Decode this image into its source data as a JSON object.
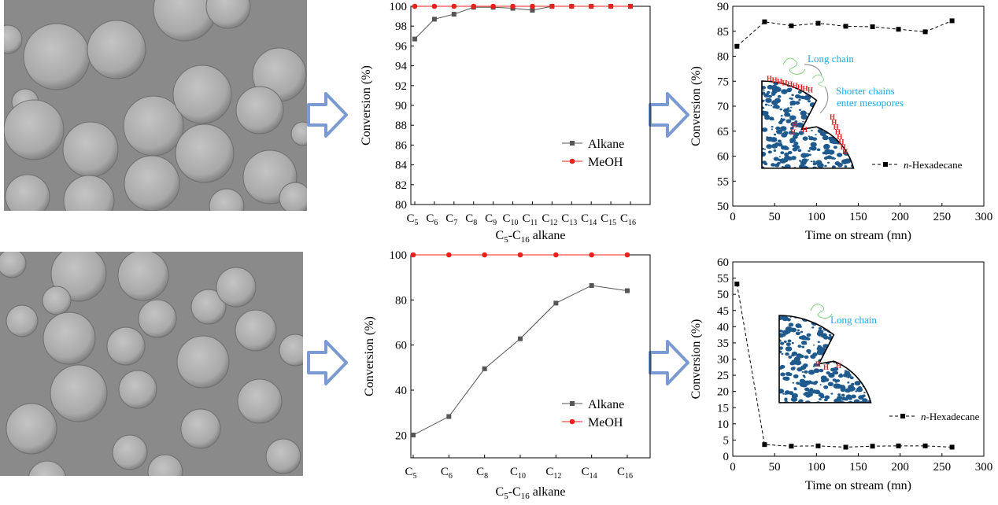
{
  "colors": {
    "alkane": "#555555",
    "meoh": "#e8221b",
    "arrow_fill": "#ffffff",
    "arrow_stroke": "#7b9ad2",
    "annotation_blue": "#1aa9e8",
    "pore_blue": "#1f5a8e",
    "h_red": "#e81b1b",
    "sem_bg": "#8a8a8a",
    "sem_sphere": "#b6b6b6"
  },
  "panels": {
    "top_sem": {
      "name": "SEM image top",
      "kind": "micrograph"
    },
    "bottom_sem": {
      "name": "SEM image bottom",
      "kind": "micrograph"
    }
  },
  "annotations": {
    "top": {
      "long_chain": "Long chain",
      "shorter_line1": "Shorter chains",
      "shorter_line2": "enter mesopores",
      "h_glyph": "H"
    },
    "bottom": {
      "long_chain": "Long chain",
      "h_glyph": "H"
    }
  },
  "chart_data": [
    {
      "id": "top_conversion",
      "type": "line",
      "ylabel": "Conversion (%)",
      "xlabel_parts": [
        "C",
        "5",
        "-C",
        "16",
        " alkane"
      ],
      "ylim": [
        80,
        100
      ],
      "yticks": [
        80,
        82,
        84,
        86,
        88,
        90,
        92,
        94,
        96,
        98,
        100
      ],
      "ytick_labels": [
        "80",
        "82",
        "84",
        "86",
        "88",
        "90",
        "92",
        "94",
        "96",
        "98",
        "100"
      ],
      "categories": [
        "5",
        "6",
        "7",
        "8",
        "9",
        "10",
        "11",
        "12",
        "13",
        "14",
        "15",
        "16"
      ],
      "category_prefix": "C",
      "series": [
        {
          "name": "Alkane",
          "marker": "square",
          "values": [
            96.7,
            98.7,
            99.2,
            99.9,
            99.9,
            99.8,
            99.6,
            100,
            100,
            100,
            100,
            100
          ]
        },
        {
          "name": "MeOH",
          "marker": "circle",
          "values": [
            100,
            100,
            100,
            100,
            100,
            100,
            100,
            100,
            100,
            100,
            100,
            100
          ]
        }
      ],
      "legend": [
        "Alkane",
        "MeOH"
      ],
      "legend_position": "bottom-right"
    },
    {
      "id": "top_stream",
      "type": "line",
      "ylabel": "Conversion (%)",
      "xlabel": "Time on stream (mn)",
      "xlim": [
        0,
        300
      ],
      "xticks": [
        "0",
        "50",
        "100",
        "150",
        "200",
        "250",
        "300"
      ],
      "ylim": [
        50,
        90
      ],
      "yticks": [
        "50",
        "55",
        "60",
        "65",
        "70",
        "75",
        "80",
        "85",
        "90"
      ],
      "series": [
        {
          "name": "n-Hexadecane",
          "marker": "square",
          "x": [
            5,
            38,
            70,
            102,
            135,
            167,
            198,
            230,
            262
          ],
          "values": [
            82,
            86.9,
            86.1,
            86.6,
            86.0,
            85.9,
            85.4,
            84.9,
            87.1
          ]
        }
      ],
      "legend_italic": "n",
      "legend_rest": "-Hexadecane",
      "legend_position": "middle-right"
    },
    {
      "id": "bottom_conversion",
      "type": "line",
      "ylabel": "Conversion (%)",
      "xlabel_parts": [
        "C",
        "5",
        "-C",
        "16",
        " alkane"
      ],
      "ylim": [
        10,
        100
      ],
      "yticks": [
        20,
        40,
        60,
        80,
        100
      ],
      "ytick_labels": [
        "20",
        "40",
        "60",
        "80",
        "100"
      ],
      "categories": [
        "5",
        "6",
        "8",
        "10",
        "12",
        "14",
        "16"
      ],
      "category_prefix": "C",
      "series": [
        {
          "name": "Alkane",
          "marker": "square",
          "values": [
            20.1,
            28.3,
            49.5,
            62.8,
            78.6,
            86.4,
            84.1
          ]
        },
        {
          "name": "MeOH",
          "marker": "circle",
          "values": [
            100,
            100,
            100,
            100,
            100,
            100,
            100
          ]
        }
      ],
      "legend": [
        "Alkane",
        "MeOH"
      ],
      "legend_position": "bottom-right"
    },
    {
      "id": "bottom_stream",
      "type": "line",
      "ylabel": "Conversion (%)",
      "xlabel": "Time on stream (mn)",
      "xlim": [
        0,
        300
      ],
      "xticks": [
        "0",
        "50",
        "100",
        "150",
        "200",
        "250",
        "300"
      ],
      "ylim": [
        0,
        60
      ],
      "yticks": [
        "0",
        "5",
        "10",
        "15",
        "20",
        "25",
        "30",
        "35",
        "40",
        "45",
        "50",
        "55",
        "60"
      ],
      "series": [
        {
          "name": "n-Hexadecane",
          "marker": "square",
          "x": [
            5,
            38,
            70,
            102,
            135,
            167,
            198,
            230,
            262
          ],
          "values": [
            53.2,
            3.6,
            3.1,
            3.2,
            2.8,
            3.1,
            3.2,
            3.2,
            2.8
          ]
        }
      ],
      "legend_italic": "n",
      "legend_rest": "-Hexadecane",
      "legend_position": "middle-right"
    }
  ]
}
